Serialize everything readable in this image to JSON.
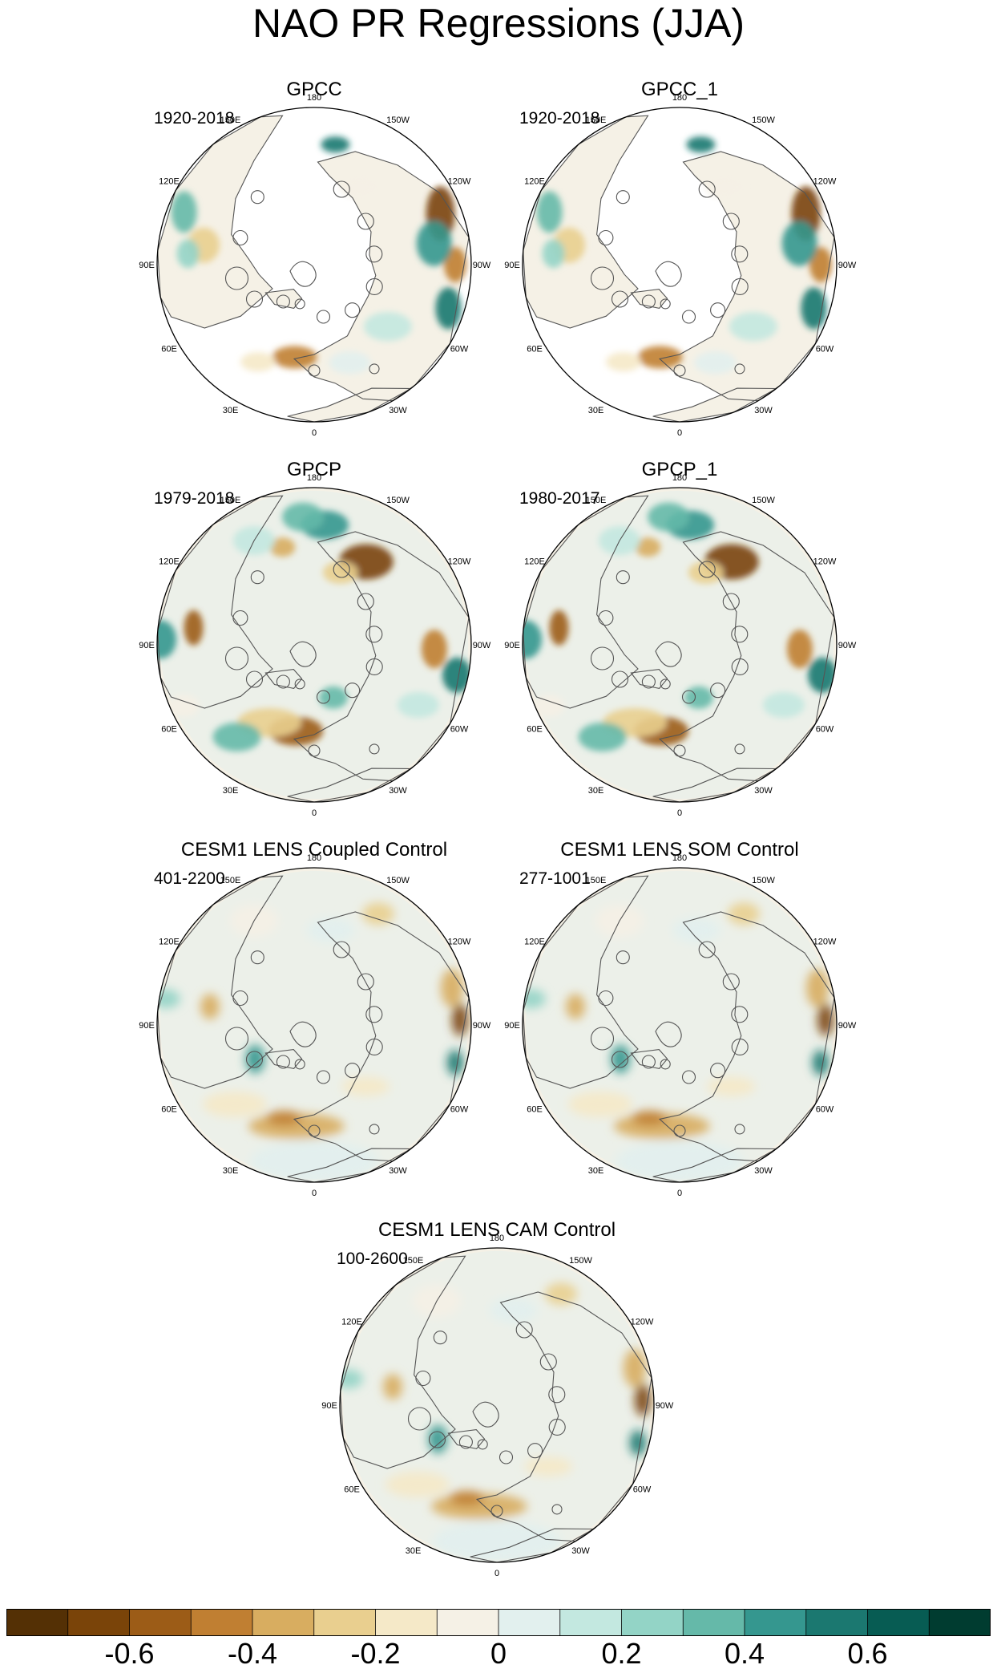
{
  "title": "NAO PR Regressions (JJA)",
  "longitude_labels": [
    "180",
    "150E",
    "120E",
    "90E",
    "60E",
    "30E",
    "0",
    "30W",
    "60W",
    "90W",
    "120W",
    "150W"
  ],
  "panels": [
    {
      "title": "GPCC",
      "period": "1920-2018",
      "type": "observed"
    },
    {
      "title": "GPCC_1",
      "period": "1920-2018",
      "type": "observed"
    },
    {
      "title": "GPCP",
      "period": "1979-2018",
      "type": "satellite"
    },
    {
      "title": "GPCP_1",
      "period": "1980-2017",
      "type": "satellite"
    },
    {
      "title": "CESM1 LENS Coupled Control",
      "period": "401-2200",
      "type": "model"
    },
    {
      "title": "CESM1 LENS SOM Control",
      "period": "277-1001",
      "type": "model"
    },
    {
      "title": "CESM1 LENS CAM Control",
      "period": "100-2600",
      "type": "model"
    }
  ],
  "colorbar": {
    "colors": [
      "#543005",
      "#7a4409",
      "#9c5c17",
      "#c07f32",
      "#d8ad60",
      "#e9cf8f",
      "#f5e9c8",
      "#f5f1e6",
      "#e2f0ee",
      "#c3e8e0",
      "#93d4c6",
      "#65b9a9",
      "#35978f",
      "#1b7870",
      "#075c53",
      "#003c30"
    ],
    "tick_values": [
      -0.6,
      -0.4,
      -0.2,
      0,
      0.2,
      0.4,
      0.6
    ],
    "tick_labels": [
      "-0.6",
      "-0.4",
      "-0.2",
      "0",
      "0.2",
      "0.4",
      "0.6"
    ],
    "range": [
      -0.8,
      0.8
    ]
  }
}
